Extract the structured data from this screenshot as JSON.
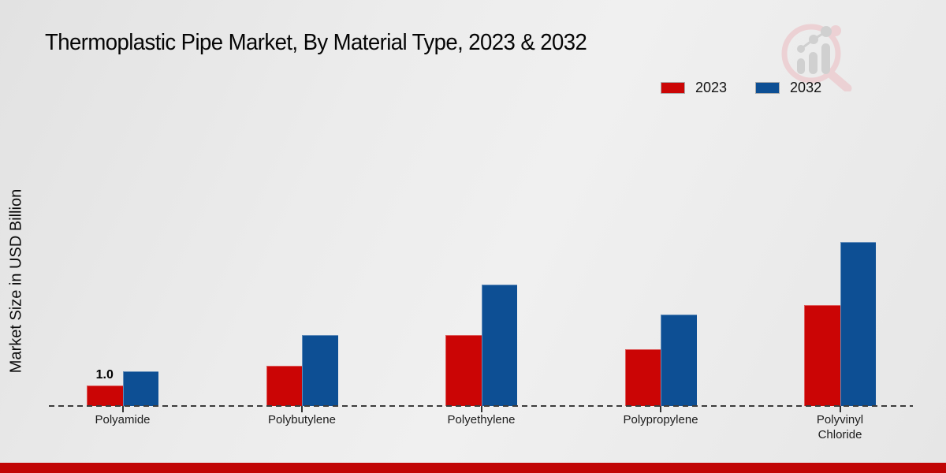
{
  "header": {
    "title": "Thermoplastic Pipe Market, By Material Type, 2023 & 2032"
  },
  "y_axis": {
    "label": "Market Size in USD Billion"
  },
  "chart_data": {
    "type": "bar",
    "title": "Thermoplastic Pipe Market, By Material Type, 2023 & 2032",
    "ylabel": "Market Size in USD Billion",
    "xlabel": "",
    "categories": [
      "Polyamide",
      "Polybutylene",
      "Polyethylene",
      "Polypropylene",
      "Polyvinyl Chloride"
    ],
    "series": [
      {
        "name": "2023",
        "color": "#cb0505",
        "values": [
          1.0,
          2.0,
          3.5,
          2.8,
          5.0
        ]
      },
      {
        "name": "2032",
        "color": "#0d4f94",
        "values": [
          1.7,
          3.5,
          6.0,
          4.5,
          8.1
        ]
      }
    ],
    "data_labels": [
      {
        "series": "2023",
        "category": "Polyamide",
        "text": "1.0"
      }
    ],
    "ylim": [
      0,
      8.5
    ],
    "grid": false,
    "legend_position": "top-right",
    "baseline_style": "dashed"
  },
  "footer": {
    "color": "#c10505"
  }
}
